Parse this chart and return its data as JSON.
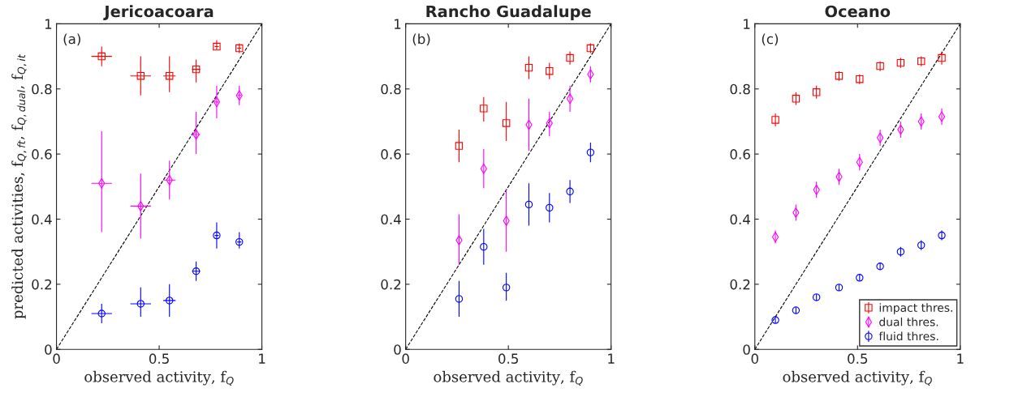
{
  "chart_data": [
    {
      "type": "scatter",
      "title": "Jericoacoara",
      "xlabel": "observed activity, f$_{Q}$",
      "ylabel": "predicted activities, f$_{Q,ft}$, f$_{Q,dual}$, f$_{Q,it}$",
      "annotations": [
        "(a)"
      ],
      "xlim": [
        0,
        1
      ],
      "ylim": [
        0,
        1
      ],
      "xticks": [
        0,
        0.5,
        1
      ],
      "yticks": [
        0,
        0.2,
        0.4,
        0.6,
        0.8,
        1
      ],
      "grid": false,
      "series": [
        {
          "type": "line",
          "x": [
            0,
            1
          ],
          "values": [
            0,
            1
          ],
          "color": "#000000",
          "line_style": "dashed",
          "marker": "none"
        },
        {
          "x": [
            0.22,
            0.41,
            0.55,
            0.68,
            0.78,
            0.89
          ],
          "values": [
            0.9,
            0.84,
            0.84,
            0.86,
            0.93,
            0.925
          ],
          "color": "#ff0000",
          "marker": "square",
          "errors": [
            [
              0.87,
              0.93
            ],
            [
              0.78,
              0.9
            ],
            [
              0.79,
              0.9
            ],
            [
              0.82,
              0.89
            ],
            [
              0.92,
              0.95
            ],
            [
              0.91,
              0.94
            ]
          ],
          "xerrors": [
            0.05,
            0.05,
            0.03,
            0.02,
            0.01,
            0.01
          ]
        },
        {
          "x": [
            0.22,
            0.41,
            0.55,
            0.68,
            0.78,
            0.89
          ],
          "values": [
            0.51,
            0.44,
            0.52,
            0.66,
            0.76,
            0.78
          ],
          "color": "#ff00ff",
          "marker": "diamond",
          "errors": [
            [
              0.36,
              0.67
            ],
            [
              0.34,
              0.54
            ],
            [
              0.46,
              0.58
            ],
            [
              0.6,
              0.73
            ],
            [
              0.71,
              0.81
            ],
            [
              0.75,
              0.81
            ]
          ],
          "xerrors": [
            0.05,
            0.05,
            0.03,
            0.02,
            0.01,
            0.01
          ]
        },
        {
          "x": [
            0.22,
            0.41,
            0.55,
            0.68,
            0.78,
            0.89
          ],
          "values": [
            0.11,
            0.14,
            0.15,
            0.24,
            0.35,
            0.33
          ],
          "color": "#0000ff",
          "marker": "circle",
          "errors": [
            [
              0.08,
              0.14
            ],
            [
              0.1,
              0.19
            ],
            [
              0.1,
              0.2
            ],
            [
              0.21,
              0.27
            ],
            [
              0.31,
              0.39
            ],
            [
              0.31,
              0.36
            ]
          ],
          "xerrors": [
            0.05,
            0.05,
            0.03,
            0.02,
            0.01,
            0.01
          ]
        }
      ]
    },
    {
      "type": "scatter",
      "title": "Rancho Guadalupe",
      "xlabel": "observed activity, f$_{Q}$",
      "annotations": [
        "(b)"
      ],
      "xlim": [
        0,
        1
      ],
      "ylim": [
        0,
        1
      ],
      "xticks": [
        0,
        0.5,
        1
      ],
      "yticks": [
        0,
        0.2,
        0.4,
        0.6,
        0.8,
        1
      ],
      "grid": false,
      "series": [
        {
          "type": "line",
          "x": [
            0,
            1
          ],
          "values": [
            0,
            1
          ],
          "color": "#000000",
          "line_style": "dashed",
          "marker": "none"
        },
        {
          "x": [
            0.26,
            0.38,
            0.49,
            0.6,
            0.7,
            0.8,
            0.9
          ],
          "values": [
            0.625,
            0.74,
            0.695,
            0.865,
            0.855,
            0.895,
            0.925
          ],
          "color": "#ff0000",
          "marker": "square",
          "errors": [
            [
              0.575,
              0.675
            ],
            [
              0.7,
              0.775
            ],
            [
              0.64,
              0.76
            ],
            [
              0.83,
              0.9
            ],
            [
              0.83,
              0.88
            ],
            [
              0.875,
              0.915
            ],
            [
              0.91,
              0.94
            ]
          ]
        },
        {
          "x": [
            0.26,
            0.38,
            0.49,
            0.6,
            0.7,
            0.8,
            0.9
          ],
          "values": [
            0.335,
            0.555,
            0.395,
            0.69,
            0.695,
            0.77,
            0.845
          ],
          "color": "#ff00ff",
          "marker": "diamond",
          "errors": [
            [
              0.26,
              0.415
            ],
            [
              0.495,
              0.615
            ],
            [
              0.3,
              0.49
            ],
            [
              0.61,
              0.77
            ],
            [
              0.655,
              0.73
            ],
            [
              0.73,
              0.81
            ],
            [
              0.82,
              0.87
            ]
          ]
        },
        {
          "x": [
            0.26,
            0.38,
            0.49,
            0.6,
            0.7,
            0.8,
            0.9
          ],
          "values": [
            0.155,
            0.315,
            0.19,
            0.445,
            0.435,
            0.485,
            0.605
          ],
          "color": "#0000ff",
          "marker": "circle",
          "errors": [
            [
              0.1,
              0.21
            ],
            [
              0.26,
              0.37
            ],
            [
              0.15,
              0.235
            ],
            [
              0.38,
              0.51
            ],
            [
              0.39,
              0.48
            ],
            [
              0.45,
              0.52
            ],
            [
              0.575,
              0.635
            ]
          ]
        }
      ]
    },
    {
      "type": "scatter",
      "title": "Oceano",
      "xlabel": "observed activity, f$_{Q}$",
      "annotations": [
        "(c)"
      ],
      "xlim": [
        0,
        1
      ],
      "ylim": [
        0,
        1
      ],
      "xticks": [
        0,
        0.5,
        1
      ],
      "yticks": [
        0,
        0.2,
        0.4,
        0.6,
        0.8,
        1
      ],
      "grid": false,
      "legend": "bottom right",
      "series": [
        {
          "type": "line",
          "x": [
            0,
            1
          ],
          "values": [
            0,
            1
          ],
          "color": "#000000",
          "line_style": "dashed",
          "marker": "none"
        },
        {
          "name": "impact thres.",
          "x": [
            0.1,
            0.2,
            0.3,
            0.41,
            0.51,
            0.61,
            0.71,
            0.81,
            0.91
          ],
          "values": [
            0.705,
            0.77,
            0.79,
            0.84,
            0.83,
            0.87,
            0.88,
            0.885,
            0.895
          ],
          "color": "#ff0000",
          "marker": "square",
          "errors": [
            0.02,
            0.02,
            0.02,
            0.015,
            0.015,
            0.015,
            0.015,
            0.015,
            0.02
          ]
        },
        {
          "name": "dual thres.",
          "x": [
            0.1,
            0.2,
            0.3,
            0.41,
            0.51,
            0.61,
            0.71,
            0.81,
            0.91
          ],
          "values": [
            0.345,
            0.42,
            0.49,
            0.53,
            0.575,
            0.65,
            0.675,
            0.7,
            0.715
          ],
          "color": "#ff00ff",
          "marker": "diamond",
          "errors": [
            0.02,
            0.025,
            0.025,
            0.025,
            0.025,
            0.025,
            0.025,
            0.025,
            0.025
          ]
        },
        {
          "name": "fluid thres.",
          "x": [
            0.1,
            0.2,
            0.3,
            0.41,
            0.51,
            0.61,
            0.71,
            0.81,
            0.91
          ],
          "values": [
            0.09,
            0.12,
            0.16,
            0.19,
            0.22,
            0.255,
            0.3,
            0.32,
            0.35
          ],
          "color": "#0000ff",
          "marker": "circle",
          "errors": [
            0.01,
            0.01,
            0.01,
            0.01,
            0.01,
            0.01,
            0.015,
            0.015,
            0.015
          ]
        }
      ]
    }
  ]
}
